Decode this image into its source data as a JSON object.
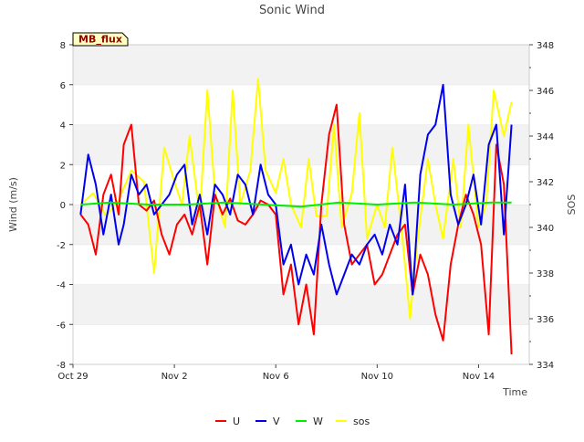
{
  "chart_data": {
    "type": "line",
    "title": "Sonic Wind",
    "badge": "MB_flux",
    "xlabel": "Time",
    "ylabel_left": "Wind (m/s)",
    "ylabel_right": "SOS",
    "x_range_days": [
      0,
      18
    ],
    "ylim_left": [
      -8,
      8
    ],
    "ylim_right": [
      334,
      348
    ],
    "x_ticks": [
      {
        "day": 0,
        "label": "Oct 29"
      },
      {
        "day": 4,
        "label": "Nov 2"
      },
      {
        "day": 8,
        "label": "Nov 6"
      },
      {
        "day": 12,
        "label": "Nov 10"
      },
      {
        "day": 16,
        "label": "Nov 14"
      }
    ],
    "y_ticks_left": [
      "-8",
      "-6",
      "-4",
      "-2",
      "0",
      "2",
      "4",
      "6",
      "8"
    ],
    "y_ticks_right": [
      "334",
      "336",
      "338",
      "340",
      "342",
      "344",
      "346",
      "348"
    ],
    "grid": "horizontal bands",
    "legend_position": "bottom",
    "colors": {
      "U": "#ff0000",
      "V": "#0000ee",
      "W": "#00ee00",
      "sos": "#ffff00"
    },
    "series": [
      {
        "name": "U",
        "axis": "left",
        "x": [
          0.3,
          0.6,
          0.9,
          1.2,
          1.5,
          1.8,
          2.0,
          2.3,
          2.6,
          2.9,
          3.2,
          3.5,
          3.8,
          4.1,
          4.4,
          4.7,
          5.0,
          5.3,
          5.6,
          5.9,
          6.2,
          6.5,
          6.8,
          7.1,
          7.4,
          7.7,
          8.0,
          8.3,
          8.6,
          8.9,
          9.2,
          9.5,
          9.8,
          10.1,
          10.4,
          10.7,
          11.0,
          11.3,
          11.6,
          11.9,
          12.2,
          12.5,
          12.8,
          13.1,
          13.4,
          13.7,
          14.0,
          14.3,
          14.6,
          14.9,
          15.2,
          15.5,
          15.8,
          16.1,
          16.4,
          16.7,
          17.0,
          17.3
        ],
        "values": [
          -0.5,
          -1.0,
          -2.5,
          0.5,
          1.5,
          -0.5,
          3.0,
          4.0,
          0.0,
          -0.3,
          0.2,
          -1.5,
          -2.5,
          -1.0,
          -0.5,
          -1.5,
          0.0,
          -3.0,
          0.5,
          -0.5,
          0.3,
          -0.8,
          -1.0,
          -0.5,
          0.2,
          0.0,
          -0.5,
          -4.5,
          -3.0,
          -6.0,
          -4.0,
          -6.5,
          0.0,
          3.5,
          5.0,
          -1.0,
          -3.0,
          -2.5,
          -2.0,
          -4.0,
          -3.5,
          -2.5,
          -1.5,
          -1.0,
          -4.5,
          -2.5,
          -3.5,
          -5.5,
          -6.8,
          -3.0,
          -1.0,
          0.5,
          -0.5,
          -2.0,
          -6.5,
          3.0,
          1.0,
          -7.5
        ]
      },
      {
        "name": "V",
        "axis": "left",
        "x": [
          0.3,
          0.6,
          0.9,
          1.2,
          1.5,
          1.8,
          2.0,
          2.3,
          2.6,
          2.9,
          3.2,
          3.5,
          3.8,
          4.1,
          4.4,
          4.7,
          5.0,
          5.3,
          5.6,
          5.9,
          6.2,
          6.5,
          6.8,
          7.1,
          7.4,
          7.7,
          8.0,
          8.3,
          8.6,
          8.9,
          9.2,
          9.5,
          9.8,
          10.1,
          10.4,
          10.7,
          11.0,
          11.3,
          11.6,
          11.9,
          12.2,
          12.5,
          12.8,
          13.1,
          13.4,
          13.7,
          14.0,
          14.3,
          14.6,
          14.9,
          15.2,
          15.5,
          15.8,
          16.1,
          16.4,
          16.7,
          17.0,
          17.3
        ],
        "values": [
          -0.5,
          2.5,
          1.0,
          -1.5,
          0.5,
          -2.0,
          -1.0,
          1.5,
          0.5,
          1.0,
          -0.5,
          0.0,
          0.5,
          1.5,
          2.0,
          -1.0,
          0.5,
          -1.5,
          1.0,
          0.5,
          -0.5,
          1.5,
          1.0,
          -0.5,
          2.0,
          0.5,
          0.0,
          -3.0,
          -2.0,
          -4.0,
          -2.5,
          -3.5,
          -1.0,
          -3.0,
          -4.5,
          -3.5,
          -2.5,
          -3.0,
          -2.0,
          -1.5,
          -2.5,
          -1.0,
          -2.0,
          1.0,
          -4.5,
          1.5,
          3.5,
          4.0,
          6.0,
          0.5,
          -1.0,
          0.0,
          1.5,
          -1.0,
          3.0,
          4.0,
          -1.5,
          4.0
        ]
      },
      {
        "name": "W",
        "axis": "left",
        "x": [
          0.3,
          1.5,
          3.0,
          4.5,
          6.0,
          7.5,
          9.0,
          10.5,
          12.0,
          13.5,
          15.0,
          16.5,
          17.3
        ],
        "values": [
          0.0,
          0.1,
          0.0,
          0.0,
          0.1,
          0.0,
          -0.1,
          0.1,
          0.0,
          0.1,
          0.0,
          0.1,
          0.1
        ]
      },
      {
        "name": "sos",
        "axis": "right",
        "x": [
          0.3,
          0.8,
          1.3,
          1.8,
          2.3,
          2.8,
          3.2,
          3.6,
          4.0,
          4.3,
          4.6,
          5.0,
          5.3,
          5.6,
          6.0,
          6.3,
          6.6,
          7.0,
          7.3,
          7.6,
          8.0,
          8.3,
          8.6,
          9.0,
          9.3,
          9.6,
          10.0,
          10.3,
          10.6,
          11.0,
          11.3,
          11.6,
          12.0,
          12.3,
          12.6,
          13.0,
          13.3,
          13.6,
          14.0,
          14.3,
          14.6,
          15.0,
          15.3,
          15.6,
          16.0,
          16.3,
          16.6,
          17.0,
          17.3
        ],
        "values": [
          341.0,
          341.5,
          340.5,
          341.2,
          342.5,
          342.0,
          338.0,
          343.5,
          342.0,
          341.0,
          344.0,
          340.5,
          346.0,
          341.5,
          340.0,
          346.0,
          341.0,
          342.5,
          346.5,
          342.5,
          341.5,
          343.0,
          341.0,
          340.0,
          343.0,
          340.5,
          340.5,
          344.5,
          340.0,
          341.5,
          345.0,
          339.5,
          341.0,
          340.0,
          343.5,
          339.5,
          336.0,
          339.5,
          343.0,
          341.0,
          339.5,
          343.0,
          340.0,
          344.5,
          340.0,
          341.0,
          346.0,
          344.0,
          345.5
        ]
      }
    ]
  }
}
